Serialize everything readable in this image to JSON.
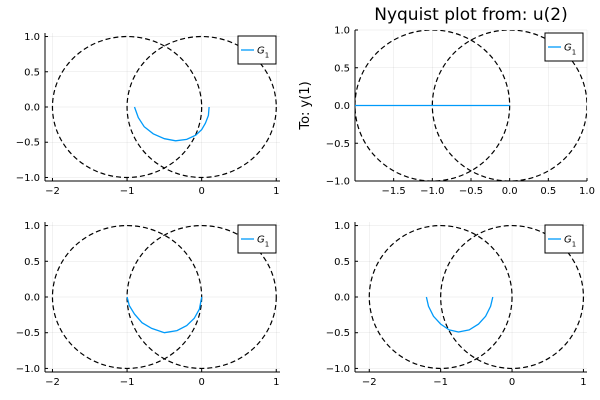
{
  "chart_data": [
    {
      "type": "line",
      "title": "",
      "ylabel": "",
      "xlim": [
        -2.1,
        1.05
      ],
      "ylim": [
        -1.05,
        1.05
      ],
      "xticks": [
        -2,
        -1,
        0,
        1
      ],
      "yticks": [
        -1.0,
        -0.5,
        0.0,
        0.5,
        1.0
      ],
      "grid": true,
      "legend": "top-right",
      "reference_circles": [
        {
          "center": [
            -1,
            0
          ],
          "radius": 1,
          "style": "dashed",
          "color": "#000000"
        },
        {
          "center": [
            0,
            0
          ],
          "radius": 1,
          "style": "dashed",
          "color": "#000000"
        }
      ],
      "series": [
        {
          "name": "G_1",
          "color": "#009AFA",
          "x": [
            -0.9,
            -0.85,
            -0.77,
            -0.65,
            -0.5,
            -0.35,
            -0.2,
            -0.08,
            0.0,
            0.05,
            0.09,
            0.1
          ],
          "y": [
            0.0,
            -0.15,
            -0.28,
            -0.38,
            -0.45,
            -0.48,
            -0.46,
            -0.4,
            -0.32,
            -0.23,
            -0.12,
            0.0
          ]
        }
      ]
    },
    {
      "type": "line",
      "title": "Nyquist plot from: u(2)",
      "ylabel": "To: y(1)",
      "xlim": [
        -2.0,
        1.0
      ],
      "ylim": [
        -1.0,
        1.0
      ],
      "xticks": [
        -1.5,
        -1.0,
        -0.5,
        0.0,
        0.5,
        1.0
      ],
      "yticks": [
        -1.0,
        -0.5,
        0.0,
        0.5,
        1.0
      ],
      "grid": true,
      "legend": "top-right",
      "reference_circles": [
        {
          "center": [
            -1,
            0
          ],
          "radius": 1,
          "style": "dashed",
          "color": "#000000"
        },
        {
          "center": [
            0,
            0
          ],
          "radius": 1,
          "style": "dashed",
          "color": "#000000"
        }
      ],
      "series": [
        {
          "name": "G_1",
          "color": "#009AFA",
          "x": [
            -2.0,
            0.0
          ],
          "y": [
            0.0,
            0.0
          ]
        }
      ]
    },
    {
      "type": "line",
      "title": "",
      "ylabel": "",
      "xlim": [
        -2.1,
        1.05
      ],
      "ylim": [
        -1.05,
        1.05
      ],
      "xticks": [
        -2,
        -1,
        0,
        1
      ],
      "yticks": [
        -1.0,
        -0.5,
        0.0,
        0.5,
        1.0
      ],
      "grid": true,
      "legend": "top-right",
      "reference_circles": [
        {
          "center": [
            -1,
            0
          ],
          "radius": 1,
          "style": "dashed",
          "color": "#000000"
        },
        {
          "center": [
            0,
            0
          ],
          "radius": 1,
          "style": "dashed",
          "color": "#000000"
        }
      ],
      "series": [
        {
          "name": "G_1",
          "color": "#009AFA",
          "x": [
            -1.0,
            -0.97,
            -0.9,
            -0.8,
            -0.67,
            -0.5,
            -0.33,
            -0.2,
            -0.1,
            -0.03,
            0.0
          ],
          "y": [
            0.0,
            -0.12,
            -0.24,
            -0.36,
            -0.44,
            -0.5,
            -0.47,
            -0.4,
            -0.3,
            -0.17,
            0.0
          ]
        }
      ]
    },
    {
      "type": "line",
      "title": "",
      "ylabel": "",
      "xlim": [
        -2.2,
        1.05
      ],
      "ylim": [
        -1.05,
        1.05
      ],
      "xticks": [
        -2,
        -1,
        0,
        1
      ],
      "yticks": [
        -1.0,
        -0.5,
        0.0,
        0.5,
        1.0
      ],
      "grid": true,
      "legend": "top-right",
      "reference_circles": [
        {
          "center": [
            -1,
            0
          ],
          "radius": 1,
          "style": "dashed",
          "color": "#000000"
        },
        {
          "center": [
            0,
            0
          ],
          "radius": 1,
          "style": "dashed",
          "color": "#000000"
        }
      ],
      "series": [
        {
          "name": "G_1",
          "color": "#009AFA",
          "x": [
            -1.2,
            -1.17,
            -1.1,
            -1.0,
            -0.88,
            -0.75,
            -0.6,
            -0.47,
            -0.37,
            -0.3,
            -0.27
          ],
          "y": [
            0.0,
            -0.13,
            -0.27,
            -0.38,
            -0.46,
            -0.49,
            -0.46,
            -0.38,
            -0.27,
            -0.13,
            0.0
          ]
        }
      ]
    }
  ]
}
